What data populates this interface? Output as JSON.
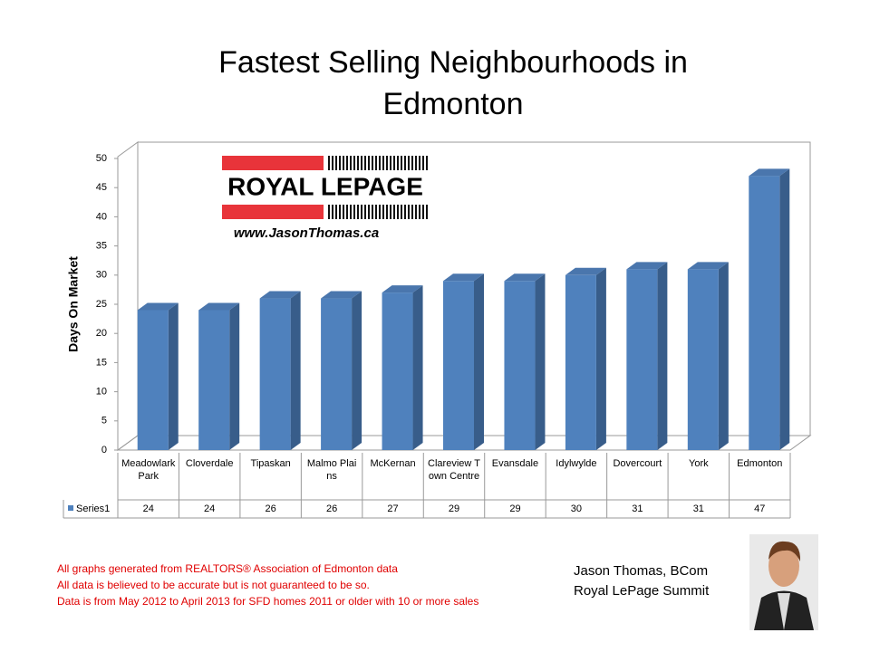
{
  "chart_data": {
    "type": "bar",
    "title": "Fastest Selling Neighbourhoods in Edmonton",
    "y_label": "Days On Market",
    "categories": [
      "Meadowlark Park",
      "Cloverdale",
      "Tipaskan",
      "Malmo Plains",
      "McKernan",
      "Clareview Town Centre",
      "Evansdale",
      "Idylwylde",
      "Dovercourt",
      "York",
      "Edmonton"
    ],
    "series": [
      {
        "name": "Series1",
        "color": "#4f81bd",
        "values": [
          24,
          24,
          26,
          26,
          27,
          29,
          29,
          30,
          31,
          31,
          47
        ]
      }
    ],
    "ylim": [
      0,
      50
    ],
    "yticks": [
      0,
      5,
      10,
      15,
      20,
      25,
      30,
      35,
      40,
      45,
      50
    ]
  },
  "logo": {
    "brand": "ROYAL LEPAGE",
    "url": "www.JasonThomas.ca"
  },
  "footnotes": [
    "All graphs generated from REALTORS® Association of Edmonton data",
    "All data is believed to be accurate but is not guaranteed to be so.",
    "Data is from May 2012  to April 2013  for SFD homes 2011  or older with 10 or more sales"
  ],
  "author": [
    "Jason Thomas, BCom",
    "Royal LePage Summit"
  ]
}
